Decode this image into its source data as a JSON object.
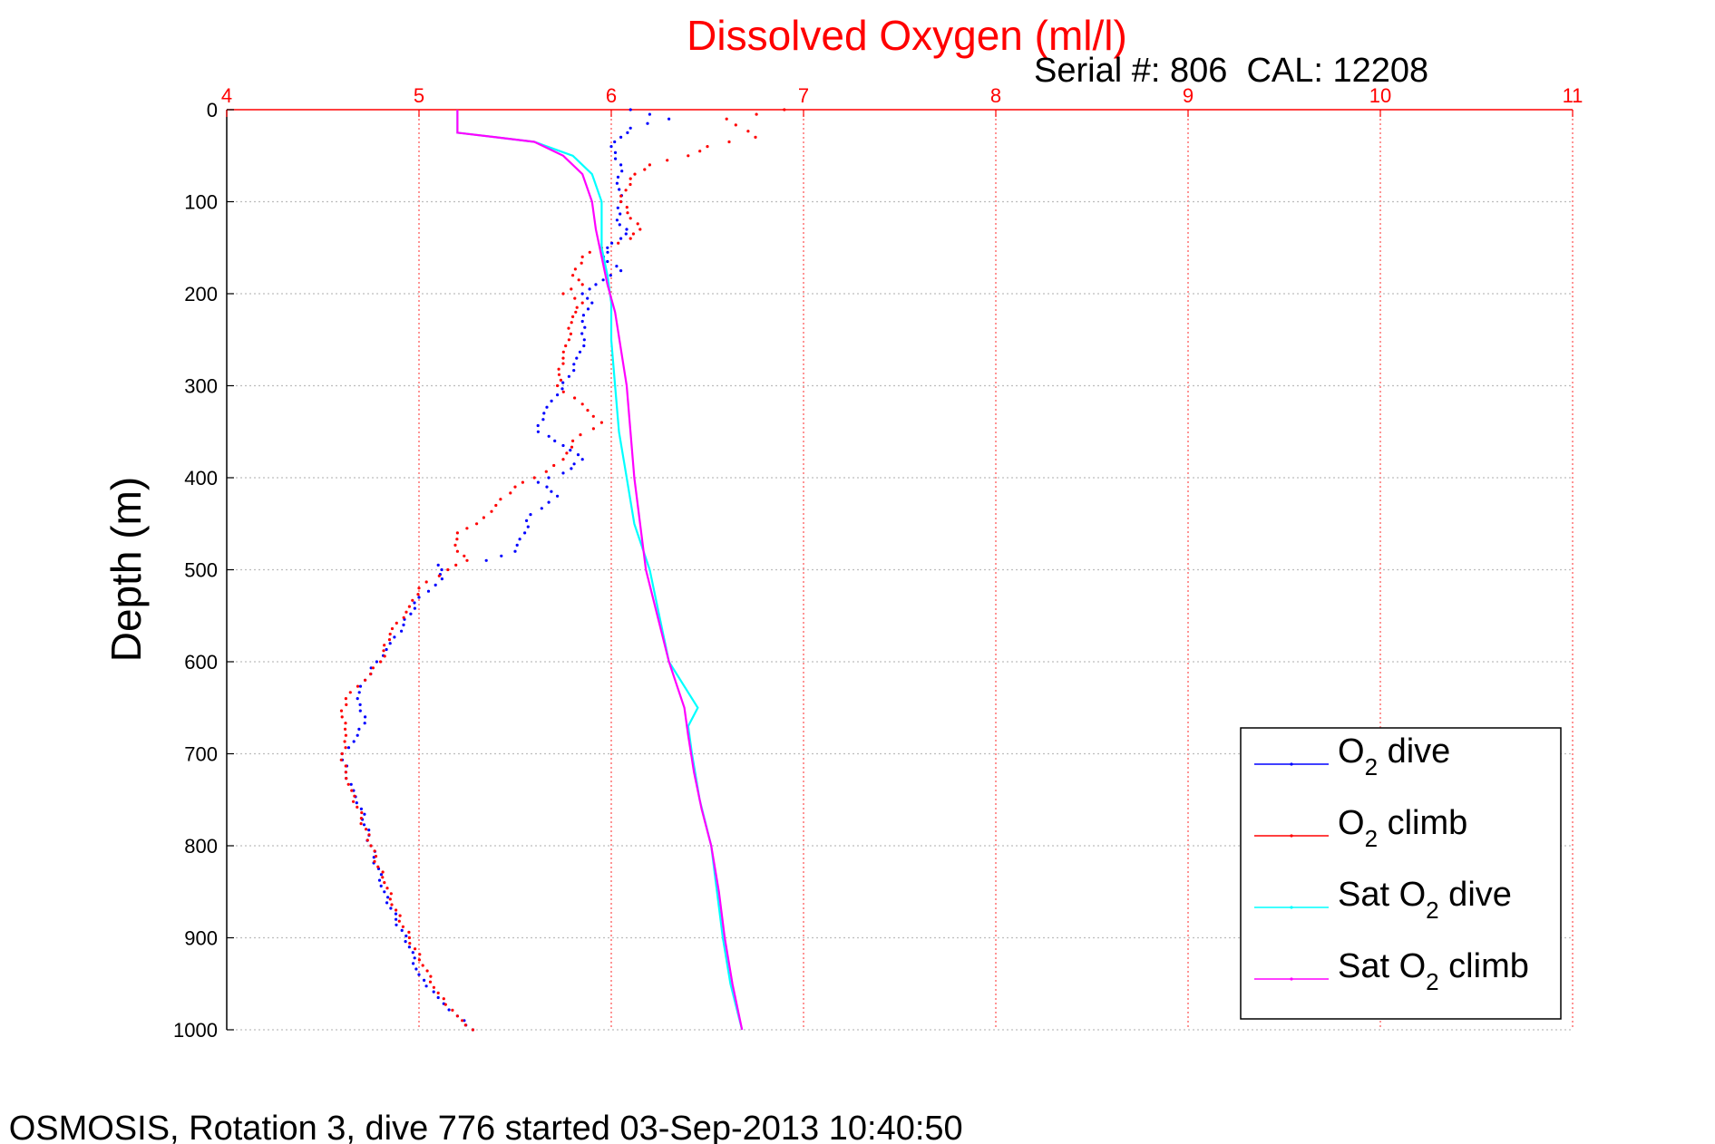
{
  "chart_data": {
    "type": "line",
    "title": "Dissolved Oxygen (ml/l)",
    "subtitle": "Serial #: 806  CAL: 12208",
    "ylabel": "Depth (m)",
    "xlabel": "",
    "xlim": [
      4,
      11
    ],
    "ylim": [
      0,
      1000
    ],
    "y_reversed": true,
    "x_axis_position": "top",
    "x_ticks": [
      "4",
      "5",
      "6",
      "7",
      "8",
      "9",
      "10",
      "11"
    ],
    "y_ticks": [
      "0",
      "100",
      "200",
      "300",
      "400",
      "500",
      "600",
      "700",
      "800",
      "900",
      "1000"
    ],
    "grid": true,
    "legend_position": "bottom-right",
    "caption": "6 OSMOSIS, Rotation 3, dive 776 started 03-Sep-2013 10:40:50",
    "series": [
      {
        "name": "O2 dive",
        "label_main": "O",
        "label_sub": "2",
        "label_rest": " dive",
        "color": "#0000ff",
        "style": "dots",
        "points": [
          [
            6.1,
            0
          ],
          [
            6.2,
            5
          ],
          [
            6.3,
            10
          ],
          [
            6.1,
            20
          ],
          [
            6.05,
            30
          ],
          [
            6.0,
            40
          ],
          [
            6.05,
            60
          ],
          [
            6.03,
            80
          ],
          [
            6.05,
            100
          ],
          [
            6.03,
            120
          ],
          [
            6.08,
            130
          ],
          [
            6.05,
            140
          ],
          [
            5.98,
            150
          ],
          [
            5.96,
            160
          ],
          [
            6.05,
            175
          ],
          [
            5.92,
            190
          ],
          [
            5.85,
            200
          ],
          [
            5.9,
            210
          ],
          [
            5.85,
            230
          ],
          [
            5.86,
            250
          ],
          [
            5.82,
            270
          ],
          [
            5.78,
            290
          ],
          [
            5.72,
            310
          ],
          [
            5.65,
            330
          ],
          [
            5.62,
            350
          ],
          [
            5.75,
            365
          ],
          [
            5.85,
            380
          ],
          [
            5.75,
            395
          ],
          [
            5.62,
            405
          ],
          [
            5.72,
            420
          ],
          [
            5.58,
            440
          ],
          [
            5.55,
            460
          ],
          [
            5.5,
            480
          ],
          [
            5.35,
            490
          ],
          [
            5.1,
            495
          ],
          [
            5.12,
            510
          ],
          [
            5.0,
            530
          ],
          [
            4.92,
            560
          ],
          [
            4.85,
            580
          ],
          [
            4.78,
            600
          ],
          [
            4.72,
            620
          ],
          [
            4.68,
            640
          ],
          [
            4.72,
            660
          ],
          [
            4.68,
            680
          ],
          [
            4.6,
            700
          ],
          [
            4.62,
            720
          ],
          [
            4.66,
            740
          ],
          [
            4.7,
            760
          ],
          [
            4.75,
            800
          ],
          [
            4.82,
            850
          ],
          [
            4.88,
            880
          ],
          [
            4.95,
            910
          ],
          [
            5.0,
            940
          ],
          [
            5.1,
            965
          ],
          [
            5.2,
            985
          ],
          [
            5.28,
            1000
          ]
        ]
      },
      {
        "name": "O2 climb",
        "label_main": "O",
        "label_sub": "2",
        "label_rest": " climb",
        "color": "#ff0000",
        "style": "dots",
        "points": [
          [
            6.9,
            0
          ],
          [
            6.6,
            10
          ],
          [
            6.75,
            30
          ],
          [
            6.5,
            40
          ],
          [
            6.4,
            50
          ],
          [
            6.2,
            60
          ],
          [
            6.1,
            75
          ],
          [
            6.05,
            100
          ],
          [
            6.15,
            130
          ],
          [
            6.1,
            140
          ],
          [
            5.95,
            150
          ],
          [
            5.85,
            160
          ],
          [
            5.8,
            180
          ],
          [
            5.85,
            190
          ],
          [
            5.75,
            200
          ],
          [
            5.85,
            210
          ],
          [
            5.8,
            225
          ],
          [
            5.78,
            250
          ],
          [
            5.75,
            270
          ],
          [
            5.72,
            300
          ],
          [
            5.85,
            320
          ],
          [
            5.95,
            340
          ],
          [
            5.8,
            360
          ],
          [
            5.75,
            380
          ],
          [
            5.6,
            400
          ],
          [
            5.5,
            410
          ],
          [
            5.4,
            430
          ],
          [
            5.3,
            450
          ],
          [
            5.2,
            460
          ],
          [
            5.2,
            480
          ],
          [
            5.25,
            490
          ],
          [
            5.15,
            500
          ],
          [
            5.0,
            520
          ],
          [
            4.95,
            540
          ],
          [
            4.85,
            570
          ],
          [
            4.8,
            600
          ],
          [
            4.72,
            620
          ],
          [
            4.62,
            640
          ],
          [
            4.6,
            660
          ],
          [
            4.62,
            680
          ],
          [
            4.6,
            700
          ],
          [
            4.62,
            720
          ],
          [
            4.65,
            740
          ],
          [
            4.7,
            770
          ],
          [
            4.75,
            800
          ],
          [
            4.82,
            840
          ],
          [
            4.88,
            870
          ],
          [
            4.95,
            900
          ],
          [
            5.02,
            930
          ],
          [
            5.1,
            960
          ],
          [
            5.2,
            985
          ],
          [
            5.28,
            1000
          ]
        ]
      },
      {
        "name": "Sat O2 dive",
        "label_main": "Sat O",
        "label_sub": "2",
        "label_rest": " dive",
        "color": "#00ffff",
        "style": "line",
        "points": [
          [
            5.2,
            0
          ],
          [
            5.2,
            25
          ],
          [
            5.4,
            30
          ],
          [
            5.6,
            35
          ],
          [
            5.8,
            50
          ],
          [
            5.9,
            70
          ],
          [
            5.95,
            100
          ],
          [
            5.95,
            130
          ],
          [
            5.95,
            150
          ],
          [
            5.98,
            180
          ],
          [
            6.0,
            210
          ],
          [
            6.0,
            250
          ],
          [
            6.02,
            300
          ],
          [
            6.04,
            350
          ],
          [
            6.08,
            400
          ],
          [
            6.12,
            450
          ],
          [
            6.2,
            500
          ],
          [
            6.25,
            550
          ],
          [
            6.3,
            600
          ],
          [
            6.45,
            650
          ],
          [
            6.4,
            670
          ],
          [
            6.42,
            700
          ],
          [
            6.46,
            750
          ],
          [
            6.52,
            800
          ],
          [
            6.55,
            850
          ],
          [
            6.58,
            900
          ],
          [
            6.62,
            950
          ],
          [
            6.68,
            1000
          ]
        ]
      },
      {
        "name": "Sat O2 climb",
        "label_main": "Sat O",
        "label_sub": "2",
        "label_rest": " climb",
        "color": "#ff00ff",
        "style": "line",
        "points": [
          [
            5.2,
            0
          ],
          [
            5.2,
            25
          ],
          [
            5.4,
            30
          ],
          [
            5.6,
            35
          ],
          [
            5.75,
            50
          ],
          [
            5.85,
            70
          ],
          [
            5.9,
            100
          ],
          [
            5.92,
            130
          ],
          [
            5.95,
            160
          ],
          [
            5.98,
            190
          ],
          [
            6.02,
            220
          ],
          [
            6.05,
            260
          ],
          [
            6.08,
            300
          ],
          [
            6.1,
            350
          ],
          [
            6.12,
            400
          ],
          [
            6.15,
            450
          ],
          [
            6.18,
            500
          ],
          [
            6.24,
            550
          ],
          [
            6.3,
            600
          ],
          [
            6.38,
            650
          ],
          [
            6.4,
            680
          ],
          [
            6.43,
            720
          ],
          [
            6.47,
            760
          ],
          [
            6.52,
            800
          ],
          [
            6.56,
            850
          ],
          [
            6.59,
            900
          ],
          [
            6.63,
            950
          ],
          [
            6.68,
            1000
          ]
        ]
      }
    ]
  }
}
